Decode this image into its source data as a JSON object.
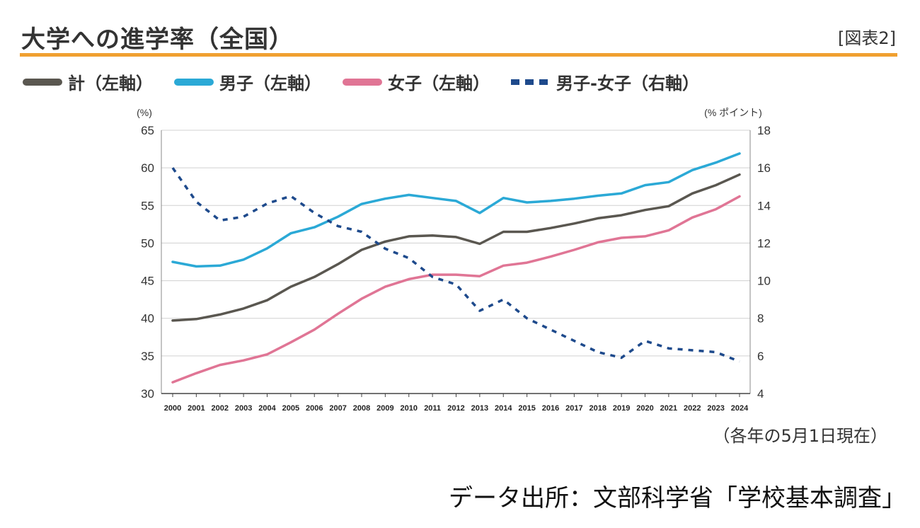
{
  "header": {
    "title": "大学への進学率（全国）",
    "fig_label": "[図表2]"
  },
  "legend": [
    {
      "label": "計（左軸）",
      "color": "#5a5750",
      "style": "solid"
    },
    {
      "label": "男子（左軸）",
      "color": "#2ba9d6",
      "style": "solid"
    },
    {
      "label": "女子（左軸）",
      "color": "#e07595",
      "style": "solid"
    },
    {
      "label": "男子-女子（右軸）",
      "color": "#1e4a8c",
      "style": "dashed"
    }
  ],
  "note": "（各年の5月1日現在）",
  "source": "データ出所：文部科学省「学校基本調査」",
  "chart_data": {
    "type": "line",
    "title": "大学への進学率（全国）",
    "x": [
      "2000",
      "2001",
      "2002",
      "2003",
      "2004",
      "2005",
      "2006",
      "2007",
      "2008",
      "2009",
      "2010",
      "2011",
      "2012",
      "2013",
      "2014",
      "2015",
      "2016",
      "2017",
      "2018",
      "2019",
      "2020",
      "2021",
      "2022",
      "2023",
      "2024"
    ],
    "left_axis": {
      "unit": "(%)",
      "ylim": [
        30,
        65
      ],
      "ticks": [
        30,
        35,
        40,
        45,
        50,
        55,
        60,
        65
      ]
    },
    "right_axis": {
      "unit": "(% ポイント)",
      "ylim": [
        4,
        18
      ],
      "ticks": [
        4,
        6,
        8,
        10,
        12,
        14,
        16,
        18
      ]
    },
    "grid": true,
    "legend_position": "top-left",
    "series": [
      {
        "name": "計（左軸）",
        "axis": "left",
        "color": "#5a5750",
        "style": "solid",
        "values": [
          39.7,
          39.9,
          40.5,
          41.3,
          42.4,
          44.2,
          45.5,
          47.2,
          49.1,
          50.2,
          50.9,
          51.0,
          50.8,
          49.9,
          51.5,
          51.5,
          52.0,
          52.6,
          53.3,
          53.7,
          54.4,
          54.9,
          56.6,
          57.7,
          59.1
        ]
      },
      {
        "name": "男子（左軸）",
        "axis": "left",
        "color": "#2ba9d6",
        "style": "solid",
        "values": [
          47.5,
          46.9,
          47.0,
          47.8,
          49.3,
          51.3,
          52.1,
          53.5,
          55.2,
          55.9,
          56.4,
          56.0,
          55.6,
          54.0,
          56.0,
          55.4,
          55.6,
          55.9,
          56.3,
          56.6,
          57.7,
          58.1,
          59.7,
          60.7,
          61.9
        ]
      },
      {
        "name": "女子（左軸）",
        "axis": "left",
        "color": "#e07595",
        "style": "solid",
        "values": [
          31.5,
          32.7,
          33.8,
          34.4,
          35.2,
          36.8,
          38.5,
          40.6,
          42.6,
          44.2,
          45.2,
          45.8,
          45.8,
          45.6,
          47.0,
          47.4,
          48.2,
          49.1,
          50.1,
          50.7,
          50.9,
          51.7,
          53.4,
          54.5,
          56.2
        ]
      },
      {
        "name": "男子-女子（右軸）",
        "axis": "right",
        "color": "#1e4a8c",
        "style": "dashed",
        "values": [
          16.0,
          14.2,
          13.2,
          13.4,
          14.1,
          14.5,
          13.6,
          12.9,
          12.6,
          11.7,
          11.2,
          10.2,
          9.8,
          8.4,
          9.0,
          8.0,
          7.4,
          6.8,
          6.2,
          5.9,
          6.8,
          6.4,
          6.3,
          6.2,
          5.7
        ]
      }
    ]
  }
}
